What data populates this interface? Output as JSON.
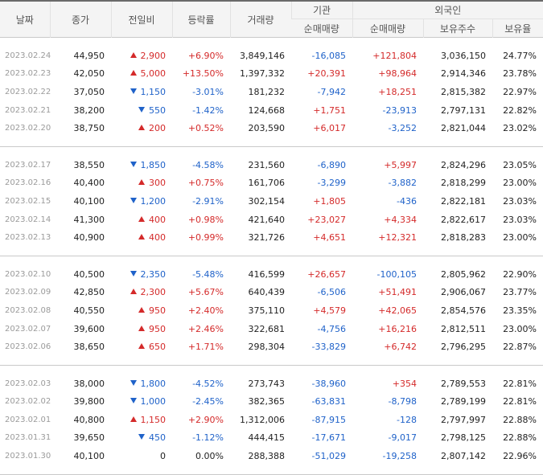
{
  "headers": {
    "date": "날짜",
    "close": "종가",
    "change": "전일비",
    "rate": "등락률",
    "volume": "거래량",
    "institution": "기관",
    "foreign": "외국인",
    "inst_net": "순매매량",
    "foreign_net": "순매매량",
    "holdings": "보유주수",
    "ratio": "보유율"
  },
  "colors": {
    "up": "#d42a2a",
    "down": "#1f62c9"
  },
  "groups": [
    [
      {
        "date": "2023.02.24",
        "close": "44,950",
        "dir": "up",
        "change": "2,900",
        "rate": "+6.90%",
        "volume": "3,849,146",
        "inst": "-16,085",
        "foreign": "+121,804",
        "holdings": "3,036,150",
        "ratio": "24.77%"
      },
      {
        "date": "2023.02.23",
        "close": "42,050",
        "dir": "up",
        "change": "5,000",
        "rate": "+13.50%",
        "volume": "1,397,332",
        "inst": "+20,391",
        "foreign": "+98,964",
        "holdings": "2,914,346",
        "ratio": "23.78%"
      },
      {
        "date": "2023.02.22",
        "close": "37,050",
        "dir": "down",
        "change": "1,150",
        "rate": "-3.01%",
        "volume": "181,232",
        "inst": "-7,942",
        "foreign": "+18,251",
        "holdings": "2,815,382",
        "ratio": "22.97%"
      },
      {
        "date": "2023.02.21",
        "close": "38,200",
        "dir": "down",
        "change": "550",
        "rate": "-1.42%",
        "volume": "124,668",
        "inst": "+1,751",
        "foreign": "-23,913",
        "holdings": "2,797,131",
        "ratio": "22.82%"
      },
      {
        "date": "2023.02.20",
        "close": "38,750",
        "dir": "up",
        "change": "200",
        "rate": "+0.52%",
        "volume": "203,590",
        "inst": "+6,017",
        "foreign": "-3,252",
        "holdings": "2,821,044",
        "ratio": "23.02%"
      }
    ],
    [
      {
        "date": "2023.02.17",
        "close": "38,550",
        "dir": "down",
        "change": "1,850",
        "rate": "-4.58%",
        "volume": "231,560",
        "inst": "-6,890",
        "foreign": "+5,997",
        "holdings": "2,824,296",
        "ratio": "23.05%"
      },
      {
        "date": "2023.02.16",
        "close": "40,400",
        "dir": "up",
        "change": "300",
        "rate": "+0.75%",
        "volume": "161,706",
        "inst": "-3,299",
        "foreign": "-3,882",
        "holdings": "2,818,299",
        "ratio": "23.00%"
      },
      {
        "date": "2023.02.15",
        "close": "40,100",
        "dir": "down",
        "change": "1,200",
        "rate": "-2.91%",
        "volume": "302,154",
        "inst": "+1,805",
        "foreign": "-436",
        "holdings": "2,822,181",
        "ratio": "23.03%"
      },
      {
        "date": "2023.02.14",
        "close": "41,300",
        "dir": "up",
        "change": "400",
        "rate": "+0.98%",
        "volume": "421,640",
        "inst": "+23,027",
        "foreign": "+4,334",
        "holdings": "2,822,617",
        "ratio": "23.03%"
      },
      {
        "date": "2023.02.13",
        "close": "40,900",
        "dir": "up",
        "change": "400",
        "rate": "+0.99%",
        "volume": "321,726",
        "inst": "+4,651",
        "foreign": "+12,321",
        "holdings": "2,818,283",
        "ratio": "23.00%"
      }
    ],
    [
      {
        "date": "2023.02.10",
        "close": "40,500",
        "dir": "down",
        "change": "2,350",
        "rate": "-5.48%",
        "volume": "416,599",
        "inst": "+26,657",
        "foreign": "-100,105",
        "holdings": "2,805,962",
        "ratio": "22.90%"
      },
      {
        "date": "2023.02.09",
        "close": "42,850",
        "dir": "up",
        "change": "2,300",
        "rate": "+5.67%",
        "volume": "640,439",
        "inst": "-6,506",
        "foreign": "+51,491",
        "holdings": "2,906,067",
        "ratio": "23.77%"
      },
      {
        "date": "2023.02.08",
        "close": "40,550",
        "dir": "up",
        "change": "950",
        "rate": "+2.40%",
        "volume": "375,110",
        "inst": "+4,579",
        "foreign": "+42,065",
        "holdings": "2,854,576",
        "ratio": "23.35%"
      },
      {
        "date": "2023.02.07",
        "close": "39,600",
        "dir": "up",
        "change": "950",
        "rate": "+2.46%",
        "volume": "322,681",
        "inst": "-4,756",
        "foreign": "+16,216",
        "holdings": "2,812,511",
        "ratio": "23.00%"
      },
      {
        "date": "2023.02.06",
        "close": "38,650",
        "dir": "up",
        "change": "650",
        "rate": "+1.71%",
        "volume": "298,304",
        "inst": "-33,829",
        "foreign": "+6,742",
        "holdings": "2,796,295",
        "ratio": "22.87%"
      }
    ],
    [
      {
        "date": "2023.02.03",
        "close": "38,000",
        "dir": "down",
        "change": "1,800",
        "rate": "-4.52%",
        "volume": "273,743",
        "inst": "-38,960",
        "foreign": "+354",
        "holdings": "2,789,553",
        "ratio": "22.81%"
      },
      {
        "date": "2023.02.02",
        "close": "39,800",
        "dir": "down",
        "change": "1,000",
        "rate": "-2.45%",
        "volume": "382,365",
        "inst": "-63,831",
        "foreign": "-8,798",
        "holdings": "2,789,199",
        "ratio": "22.81%"
      },
      {
        "date": "2023.02.01",
        "close": "40,800",
        "dir": "up",
        "change": "1,150",
        "rate": "+2.90%",
        "volume": "1,312,006",
        "inst": "-87,915",
        "foreign": "-128",
        "holdings": "2,797,997",
        "ratio": "22.88%"
      },
      {
        "date": "2023.01.31",
        "close": "39,650",
        "dir": "down",
        "change": "450",
        "rate": "-1.12%",
        "volume": "444,415",
        "inst": "-17,671",
        "foreign": "-9,017",
        "holdings": "2,798,125",
        "ratio": "22.88%"
      },
      {
        "date": "2023.01.30",
        "close": "40,100",
        "dir": "flat",
        "change": "0",
        "rate": "0.00%",
        "volume": "288,388",
        "inst": "-51,029",
        "foreign": "-19,258",
        "holdings": "2,807,142",
        "ratio": "22.96%"
      }
    ]
  ]
}
